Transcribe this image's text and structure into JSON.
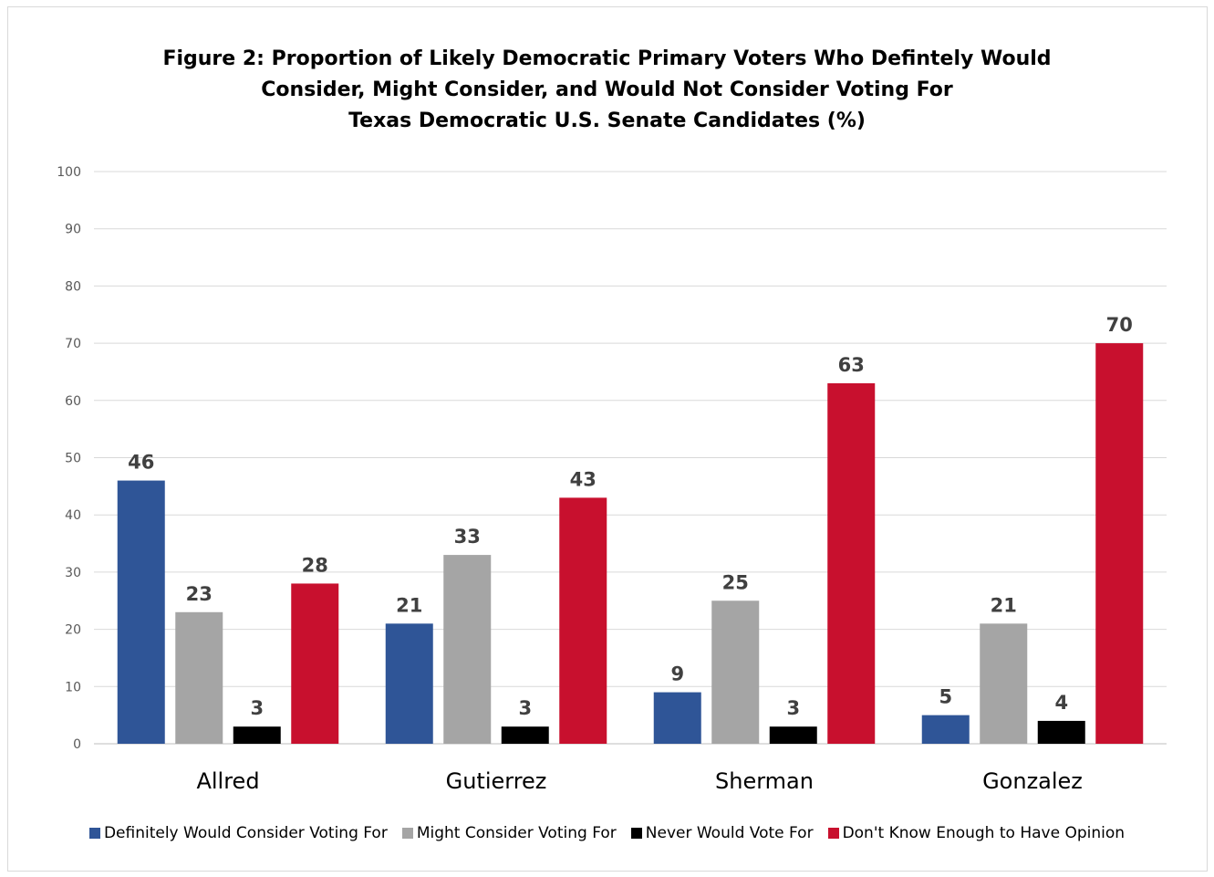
{
  "title_lines": [
    "Figure 2: Proportion of Likely Democratic Primary Voters Who Defintely Would",
    "Consider, Might Consider, and Would Not Consider Voting For",
    "Texas Democratic U.S. Senate Candidates (%)"
  ],
  "chart_data": {
    "type": "bar",
    "title": "Figure 2: Proportion of Likely Democratic Primary Voters Who Defintely Would Consider, Might Consider, and Would Not Consider Voting For Texas Democratic U.S. Senate Candidates (%)",
    "categories": [
      "Allred",
      "Gutierrez",
      "Sherman",
      "Gonzalez"
    ],
    "series": [
      {
        "name": "Definitely Would Consider Voting For",
        "color": "#2f5597",
        "values": [
          46,
          21,
          9,
          5
        ]
      },
      {
        "name": "Might Consider Voting For",
        "color": "#a5a5a5",
        "values": [
          23,
          33,
          25,
          21
        ]
      },
      {
        "name": "Never Would Vote For",
        "color": "#000000",
        "values": [
          3,
          3,
          3,
          4
        ]
      },
      {
        "name": "Don't Know Enough to Have Opinion",
        "color": "#c8102e",
        "values": [
          28,
          43,
          63,
          70
        ]
      }
    ],
    "ylim": [
      0,
      100
    ],
    "yticks": [
      0,
      10,
      20,
      30,
      40,
      50,
      60,
      70,
      80,
      90,
      100
    ],
    "grid": true,
    "legend": "bottom",
    "data_labels": true
  }
}
